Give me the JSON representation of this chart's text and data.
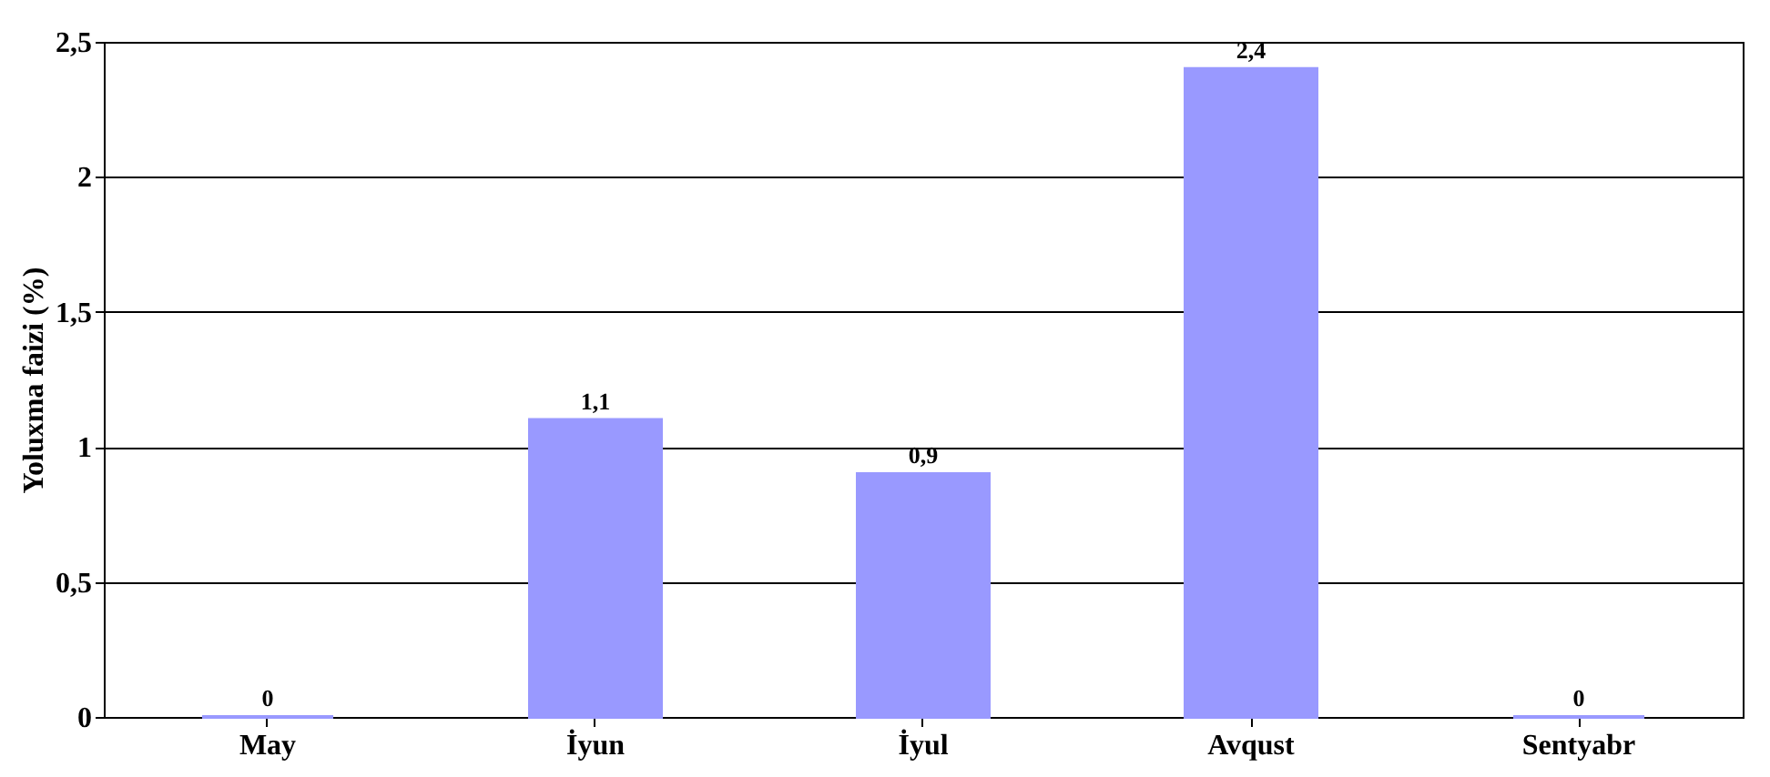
{
  "chart_data": {
    "type": "bar",
    "ylabel": "Yoluxma faizi (%)",
    "categories": [
      "May",
      "İyun",
      "İyul",
      "Avqust",
      "Sentyabr"
    ],
    "values": [
      0,
      1.1,
      0.9,
      2.4,
      0
    ],
    "value_labels": [
      "0",
      "1,1",
      "0,9",
      "2,4",
      "0"
    ],
    "color": "#9999ff",
    "ylim": [
      0,
      2.5
    ],
    "yticks": [
      0,
      {
        "value": 0.5,
        "label": "0,5"
      },
      1,
      {
        "value": 1.5,
        "label": "1,5"
      },
      2,
      {
        "value": 2.5,
        "label": "2,5"
      }
    ],
    "grid": "y"
  }
}
